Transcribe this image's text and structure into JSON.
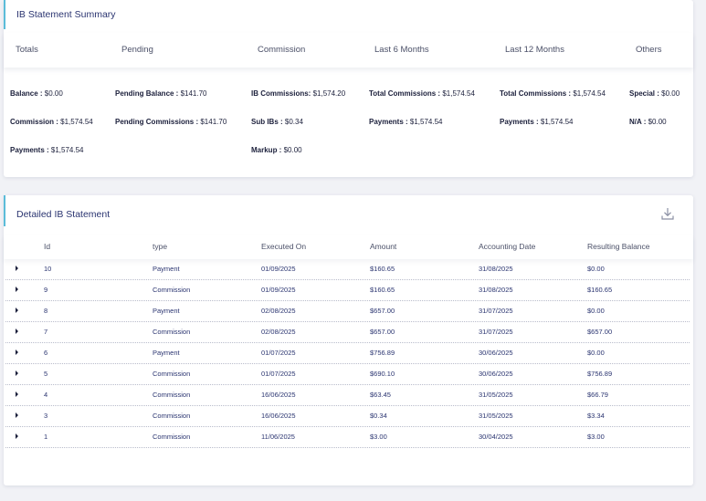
{
  "summary": {
    "title": "IB Statement Summary",
    "columns": [
      "Totals",
      "Pending",
      "Commission",
      "Last 6 Months",
      "Last 12 Months",
      "Others"
    ],
    "totals": [
      {
        "label": "Balance :",
        "value": " $0.00"
      },
      {
        "label": "Commission :",
        "value": " $1,574.54"
      },
      {
        "label": "Payments :",
        "value": " $1,574.54"
      }
    ],
    "pending": [
      {
        "label": "Pending Balance :",
        "value": " $141.70"
      },
      {
        "label": "Pending Commissions :",
        "value": " $141.70"
      }
    ],
    "commission": [
      {
        "label": "IB Commissions:",
        "value": " $1,574.20"
      },
      {
        "label": "Sub IBs :",
        "value": " $0.34"
      },
      {
        "label": "Markup :",
        "value": " $0.00"
      }
    ],
    "last6": [
      {
        "label": "Total Commissions :",
        "value": " $1,574.54"
      },
      {
        "label": "Payments :",
        "value": " $1,574.54"
      }
    ],
    "last12": [
      {
        "label": "Total Commissions :",
        "value": " $1,574.54"
      },
      {
        "label": "Payments :",
        "value": " $1,574.54"
      }
    ],
    "others": [
      {
        "label": "Special :",
        "value": " $0.00"
      },
      {
        "label": "N/A :",
        "value": " $0.00"
      }
    ]
  },
  "detail": {
    "title": "Detailed IB Statement",
    "download_icon": "download-icon",
    "headers": [
      "Id",
      "type",
      "Executed On",
      "Amount",
      "Accounting Date",
      "Resulting Balance"
    ],
    "rows": [
      [
        "10",
        "Payment",
        "01/09/2025",
        "$160.65",
        "31/08/2025",
        "$0.00"
      ],
      [
        "9",
        "Commission",
        "01/09/2025",
        "$160.65",
        "31/08/2025",
        "$160.65"
      ],
      [
        "8",
        "Payment",
        "02/08/2025",
        "$657.00",
        "31/07/2025",
        "$0.00"
      ],
      [
        "7",
        "Commission",
        "02/08/2025",
        "$657.00",
        "31/07/2025",
        "$657.00"
      ],
      [
        "6",
        "Payment",
        "01/07/2025",
        "$756.89",
        "30/06/2025",
        "$0.00"
      ],
      [
        "5",
        "Commission",
        "01/07/2025",
        "$690.10",
        "30/06/2025",
        "$756.89"
      ],
      [
        "4",
        "Commission",
        "16/06/2025",
        "$63.45",
        "31/05/2025",
        "$66.79"
      ],
      [
        "3",
        "Commission",
        "16/06/2025",
        "$0.34",
        "31/05/2025",
        "$3.34"
      ],
      [
        "1",
        "Commission",
        "11/06/2025",
        "$3.00",
        "30/04/2025",
        "$3.00"
      ]
    ]
  },
  "colors": {
    "accent": "#5bbcd9",
    "text": "#2a3470",
    "background": "#f1f2f6"
  }
}
